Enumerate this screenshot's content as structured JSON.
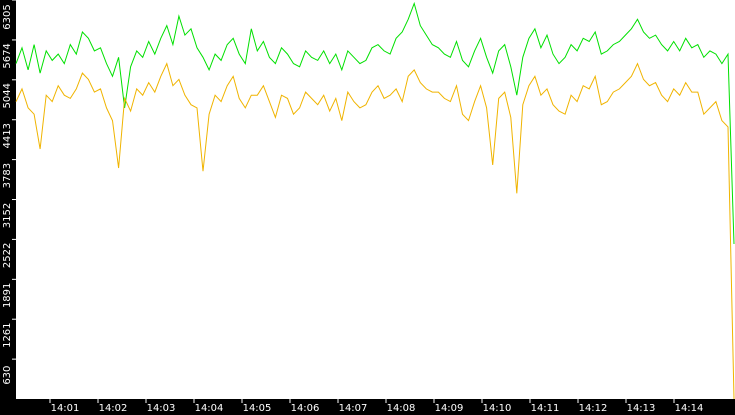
{
  "chart_data": {
    "type": "line",
    "ylim": [
      0,
      6305
    ],
    "yticks": [
      630,
      1261,
      1891,
      2522,
      3152,
      3783,
      4413,
      5044,
      5674,
      6305
    ],
    "xticks": [
      "14:01",
      "14:02",
      "14:03",
      "14:04",
      "14:05",
      "14:06",
      "14:07",
      "14:08",
      "14:09",
      "14:10",
      "14:11",
      "14:12",
      "14:13",
      "14:14"
    ],
    "series": [
      {
        "color": "#00e000",
        "values": [
          5300,
          5550,
          5200,
          5600,
          5150,
          5500,
          5350,
          5450,
          5300,
          5600,
          5450,
          5800,
          5700,
          5500,
          5550,
          5300,
          5100,
          5400,
          4600,
          5250,
          5500,
          5400,
          5650,
          5450,
          5700,
          5900,
          5600,
          6050,
          5750,
          5850,
          5550,
          5400,
          5200,
          5450,
          5350,
          5600,
          5700,
          5450,
          5300,
          5850,
          5500,
          5650,
          5400,
          5300,
          5550,
          5450,
          5300,
          5250,
          5500,
          5400,
          5350,
          5500,
          5300,
          5450,
          5200,
          5500,
          5400,
          5300,
          5350,
          5550,
          5600,
          5500,
          5450,
          5700,
          5800,
          6000,
          6250,
          5900,
          5750,
          5600,
          5550,
          5450,
          5400,
          5650,
          5350,
          5250,
          5500,
          5700,
          5400,
          5150,
          5500,
          5600,
          5250,
          4800,
          5400,
          5700,
          5850,
          5550,
          5750,
          5450,
          5300,
          5400,
          5600,
          5500,
          5700,
          5650,
          5800,
          5450,
          5500,
          5600,
          5650,
          5750,
          5850,
          6000,
          5800,
          5700,
          5750,
          5600,
          5500,
          5650,
          5500,
          5700,
          5550,
          5600,
          5400,
          5500,
          5450,
          5300,
          5450,
          2450
        ]
      },
      {
        "color": "#f0b400",
        "values": [
          4700,
          4900,
          4600,
          4500,
          3950,
          4800,
          4700,
          4950,
          4800,
          4750,
          4900,
          5150,
          5050,
          4850,
          4900,
          4600,
          4400,
          3650,
          4750,
          4550,
          4900,
          4800,
          5000,
          4850,
          5100,
          5300,
          4950,
          5050,
          4800,
          4650,
          4600,
          3600,
          4500,
          4800,
          4700,
          4950,
          5100,
          4750,
          4600,
          4800,
          4800,
          4950,
          4700,
          4450,
          4800,
          4750,
          4500,
          4600,
          4850,
          4750,
          4650,
          4800,
          4550,
          4750,
          4400,
          4850,
          4700,
          4600,
          4650,
          4850,
          4950,
          4750,
          4800,
          4900,
          4700,
          5100,
          5200,
          5000,
          4900,
          4850,
          4850,
          4750,
          4700,
          4950,
          4500,
          4400,
          4700,
          4950,
          4600,
          3700,
          4750,
          4850,
          4450,
          3250,
          4650,
          4950,
          5100,
          4800,
          4900,
          4650,
          4550,
          4500,
          4800,
          4700,
          4950,
          4900,
          5100,
          4650,
          4700,
          4850,
          4900,
          5000,
          5100,
          5300,
          5050,
          4950,
          5000,
          4800,
          4700,
          4900,
          4800,
          5000,
          4850,
          4850,
          4500,
          4600,
          4700,
          4400,
          4300,
          0
        ]
      }
    ]
  }
}
